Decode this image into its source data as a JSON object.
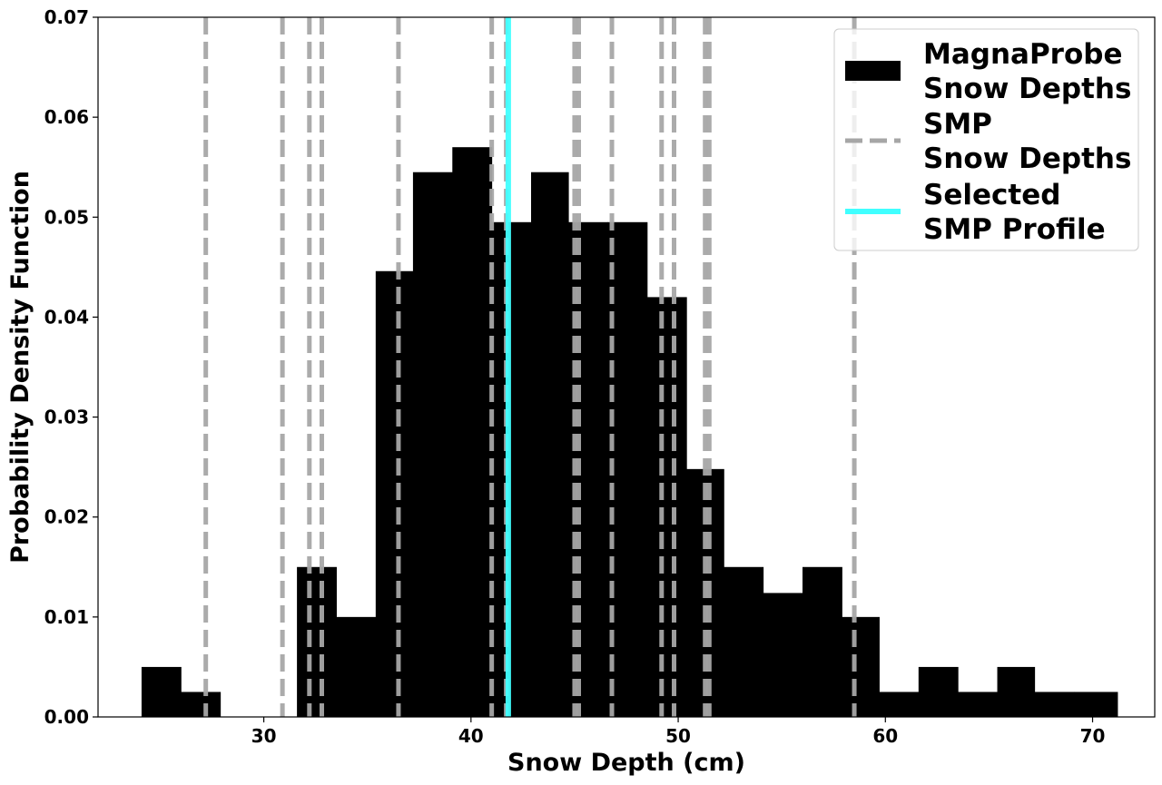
{
  "chart_data": {
    "type": "bar",
    "title": "",
    "xlabel": "Snow Depth (cm)",
    "ylabel": "Probability Density Function",
    "xlim": [
      22,
      73
    ],
    "ylim": [
      0,
      0.07
    ],
    "xticks": [
      30,
      40,
      50,
      60,
      70
    ],
    "yticks": [
      0.0,
      0.01,
      0.02,
      0.03,
      0.04,
      0.05,
      0.06,
      0.07
    ],
    "ytick_labels": [
      "0.00",
      "0.01",
      "0.02",
      "0.03",
      "0.04",
      "0.05",
      "0.06",
      "0.07"
    ],
    "grid": false,
    "legend_position": "top-right",
    "histogram": {
      "name": "MagnaProbe\nSnow Depths",
      "color": "#000000",
      "bin_edges": [
        24.1,
        26.0,
        27.9,
        29.7,
        31.6,
        33.5,
        35.4,
        37.2,
        39.1,
        41.0,
        42.9,
        44.7,
        46.6,
        48.5,
        50.4,
        52.2,
        54.1,
        56.0,
        57.9,
        59.7,
        61.6,
        63.5,
        65.4,
        67.2,
        69.1,
        71.2
      ],
      "values": [
        0.005,
        0.0025,
        0.0,
        0.0,
        0.015,
        0.01,
        0.0446,
        0.0545,
        0.057,
        0.0495,
        0.0545,
        0.0495,
        0.0495,
        0.042,
        0.0248,
        0.015,
        0.0124,
        0.015,
        0.01,
        0.0025,
        0.005,
        0.0025,
        0.005,
        0.0025,
        0.0025
      ]
    },
    "smp_lines": {
      "name": "SMP\nSnow Depths",
      "color": "#a6a6a6",
      "x": [
        27.2,
        30.9,
        32.2,
        32.8,
        36.5,
        41.0,
        41.7,
        45.0,
        45.2,
        46.8,
        49.2,
        49.8,
        51.3,
        51.5,
        58.5
      ]
    },
    "selected_line": {
      "name": "Selected\nSMP Profile",
      "color": "#40ffff",
      "x": 41.8
    }
  }
}
